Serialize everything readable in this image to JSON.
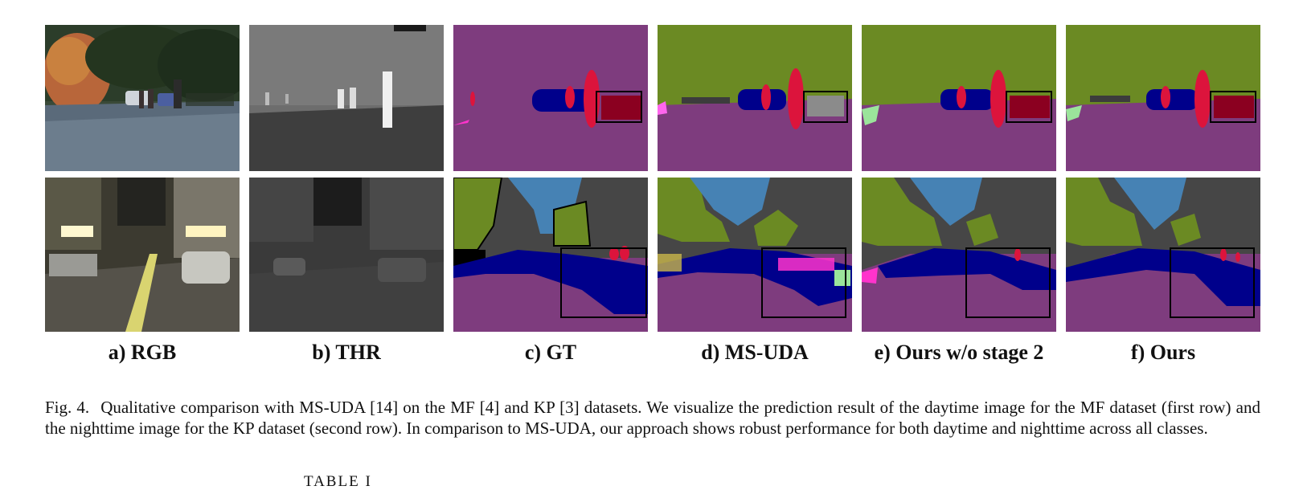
{
  "figure": {
    "columns": [
      {
        "id": "rgb",
        "label": "a) RGB"
      },
      {
        "id": "thr",
        "label": "b) THR"
      },
      {
        "id": "gt",
        "label": "c) GT"
      },
      {
        "id": "msuda",
        "label": "d) MS-UDA"
      },
      {
        "id": "ours_wo",
        "label": "e) Ours w/o stage 2"
      },
      {
        "id": "ours",
        "label": "f) Ours"
      }
    ],
    "caption": {
      "number": "Fig. 4.",
      "text": "Qualitative comparison with MS-UDA [14] on the MF [4] and KP [3] datasets. We visualize the prediction result of the daytime image for the MF dataset (first row) and the nighttime image for the KP dataset (second row). In comparison to MS-UDA, our approach shows robust performance for both daytime and nighttime across all classes."
    },
    "segmentation_colors": {
      "road": "#7e3c7e",
      "vegetation": "#6b8a23",
      "car": "#00008b",
      "person": "#dc143c",
      "bicycle": "#8b0020",
      "sky": "#4682b4",
      "building": "#464646"
    }
  },
  "table_title": "TABLE I"
}
